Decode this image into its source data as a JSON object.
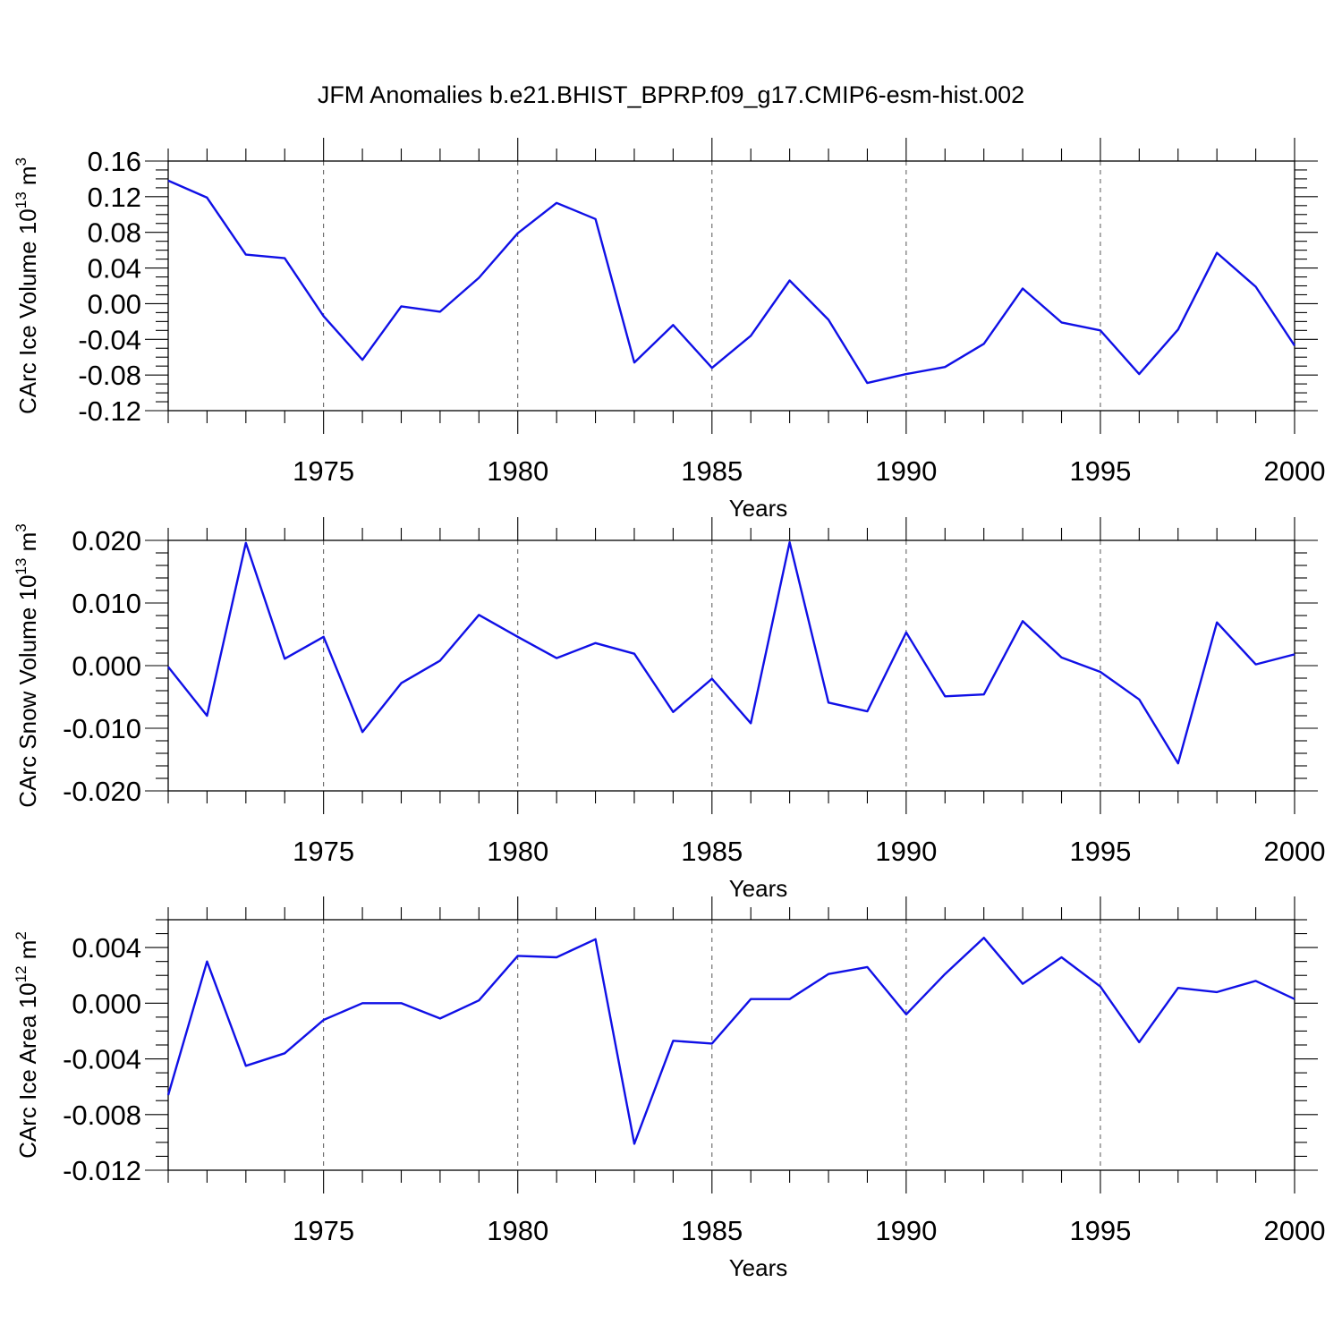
{
  "title": "JFM Anomalies b.e21.BHIST_BPRP.f09_g17.CMIP6-esm-hist.002",
  "line_color": "#1010e6",
  "chart_data": [
    {
      "type": "line",
      "ylabel_main": "CArc Ice Volume 10",
      "ylabel_sup": "13",
      "ylabel_unit": " m",
      "ylabel_unit_sup": "3",
      "xlabel": "Years",
      "xlim": [
        1971,
        2000
      ],
      "ylim": [
        -0.12,
        0.16
      ],
      "y_ticks": [
        -0.12,
        -0.08,
        -0.04,
        0.0,
        0.04,
        0.08,
        0.12,
        0.16
      ],
      "y_tick_labels": [
        "-0.12",
        "-0.08",
        "-0.04",
        "0.00",
        "0.04",
        "0.08",
        "0.12",
        "0.16"
      ],
      "y_minor_step": 0.01,
      "x_ticks": [
        1975,
        1980,
        1985,
        1990,
        1995,
        2000
      ],
      "x_tick_labels": [
        "1975",
        "1980",
        "1985",
        "1990",
        "1995",
        "2000"
      ],
      "x_gridlines": [
        1975,
        1980,
        1985,
        1990,
        1995
      ],
      "x": [
        1971,
        1972,
        1973,
        1974,
        1975,
        1976,
        1977,
        1978,
        1979,
        1980,
        1981,
        1982,
        1983,
        1984,
        1985,
        1986,
        1987,
        1988,
        1989,
        1990,
        1991,
        1992,
        1993,
        1994,
        1995,
        1996,
        1997,
        1998,
        1999,
        2000
      ],
      "y": [
        0.138,
        0.119,
        0.055,
        0.051,
        -0.014,
        -0.063,
        -0.003,
        -0.009,
        0.029,
        0.079,
        0.113,
        0.095,
        -0.066,
        -0.024,
        -0.072,
        -0.036,
        0.026,
        -0.018,
        -0.089,
        -0.079,
        -0.071,
        -0.045,
        0.017,
        -0.021,
        -0.03,
        -0.079,
        -0.029,
        0.057,
        0.019,
        -0.047
      ]
    },
    {
      "type": "line",
      "ylabel_main": "CArc Snow Volume 10",
      "ylabel_sup": "13",
      "ylabel_unit": " m",
      "ylabel_unit_sup": "3",
      "xlabel": "Years",
      "xlim": [
        1971,
        2000
      ],
      "ylim": [
        -0.02,
        0.02
      ],
      "y_ticks": [
        -0.02,
        -0.01,
        0.0,
        0.01,
        0.02
      ],
      "y_tick_labels": [
        "-0.020",
        "-0.010",
        "0.000",
        "0.010",
        "0.020"
      ],
      "y_minor_step": 0.002,
      "x_ticks": [
        1975,
        1980,
        1985,
        1990,
        1995,
        2000
      ],
      "x_tick_labels": [
        "1975",
        "1980",
        "1985",
        "1990",
        "1995",
        "2000"
      ],
      "x_gridlines": [
        1975,
        1980,
        1985,
        1990,
        1995
      ],
      "x": [
        1971,
        1972,
        1973,
        1974,
        1975,
        1976,
        1977,
        1978,
        1979,
        1980,
        1981,
        1982,
        1983,
        1984,
        1985,
        1986,
        1987,
        1988,
        1989,
        1990,
        1991,
        1992,
        1993,
        1994,
        1995,
        1996,
        1997,
        1998,
        1999,
        2000
      ],
      "y": [
        -0.0002,
        -0.008,
        0.0196,
        0.0011,
        0.0046,
        -0.0106,
        -0.0028,
        0.0008,
        0.0081,
        0.0046,
        0.0012,
        0.0036,
        0.0019,
        -0.0074,
        -0.0021,
        -0.0092,
        0.0197,
        -0.0059,
        -0.0073,
        0.0053,
        -0.0049,
        -0.0046,
        0.0071,
        0.0013,
        -0.001,
        -0.0054,
        -0.0156,
        0.0069,
        0.0002,
        0.0018
      ]
    },
    {
      "type": "line",
      "ylabel_main": "CArc Ice Area 10",
      "ylabel_sup": "12",
      "ylabel_unit": " m",
      "ylabel_unit_sup": "2",
      "xlabel": "Years",
      "xlim": [
        1971,
        2000
      ],
      "ylim": [
        -0.012,
        0.006
      ],
      "y_ticks": [
        -0.012,
        -0.008,
        -0.004,
        0.0,
        0.004
      ],
      "y_tick_labels": [
        "-0.012",
        "-0.008",
        "-0.004",
        "0.000",
        "0.004"
      ],
      "y_minor_step": 0.001,
      "x_ticks": [
        1975,
        1980,
        1985,
        1990,
        1995,
        2000
      ],
      "x_tick_labels": [
        "1975",
        "1980",
        "1985",
        "1990",
        "1995",
        "2000"
      ],
      "x_gridlines": [
        1975,
        1980,
        1985,
        1990,
        1995
      ],
      "x": [
        1971,
        1972,
        1973,
        1974,
        1975,
        1976,
        1977,
        1978,
        1979,
        1980,
        1981,
        1982,
        1983,
        1984,
        1985,
        1986,
        1987,
        1988,
        1989,
        1990,
        1991,
        1992,
        1993,
        1994,
        1995,
        1996,
        1997,
        1998,
        1999,
        2000
      ],
      "y": [
        -0.0066,
        0.003,
        -0.0045,
        -0.0036,
        -0.0012,
        0.0,
        0.0,
        -0.0011,
        0.0002,
        0.0034,
        0.0033,
        0.0046,
        -0.0101,
        -0.0027,
        -0.0029,
        0.0003,
        0.0003,
        0.0021,
        0.0026,
        -0.0008,
        0.0021,
        0.0047,
        0.0014,
        0.0033,
        0.0012,
        -0.0028,
        0.0011,
        0.0008,
        0.0016,
        0.0003
      ]
    }
  ]
}
